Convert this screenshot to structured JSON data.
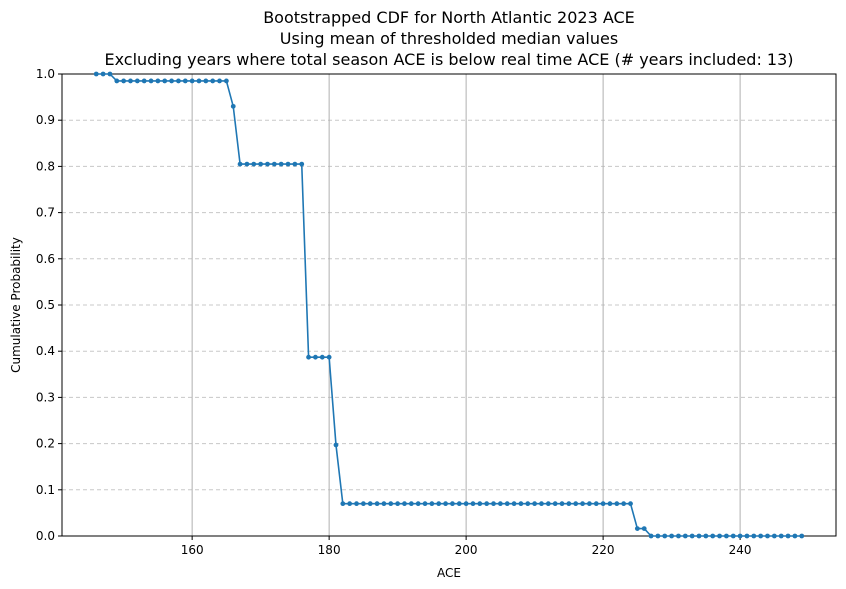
{
  "chart_data": {
    "type": "line",
    "title": [
      "Bootstrapped CDF for North Atlantic 2023 ACE",
      "Using mean of thresholded median values",
      "Excluding years where total season ACE is below real time ACE (# years included: 13)"
    ],
    "x_label": "ACE",
    "y_label": "Cumulative Probability",
    "x": [
      146,
      147,
      148,
      149,
      150,
      151,
      152,
      153,
      154,
      155,
      156,
      157,
      158,
      159,
      160,
      161,
      162,
      163,
      164,
      165,
      166,
      167,
      168,
      169,
      170,
      171,
      172,
      173,
      174,
      175,
      176,
      177,
      178,
      179,
      180,
      181,
      182,
      183,
      184,
      185,
      186,
      187,
      188,
      189,
      190,
      191,
      192,
      193,
      194,
      195,
      196,
      197,
      198,
      199,
      200,
      201,
      202,
      203,
      204,
      205,
      206,
      207,
      208,
      209,
      210,
      211,
      212,
      213,
      214,
      215,
      216,
      217,
      218,
      219,
      220,
      221,
      222,
      223,
      224,
      225,
      226,
      227,
      228,
      229,
      230,
      231,
      232,
      233,
      234,
      235,
      236,
      237,
      238,
      239,
      240,
      241,
      242,
      243,
      244,
      245,
      246,
      247,
      248,
      249
    ],
    "series": [
      {
        "color": "#1f77b4",
        "values": [
          1.0,
          1.0,
          1.0,
          0.985,
          0.985,
          0.985,
          0.985,
          0.985,
          0.985,
          0.985,
          0.985,
          0.985,
          0.985,
          0.985,
          0.985,
          0.985,
          0.985,
          0.985,
          0.985,
          0.985,
          0.93,
          0.805,
          0.805,
          0.805,
          0.805,
          0.805,
          0.805,
          0.805,
          0.805,
          0.805,
          0.805,
          0.387,
          0.387,
          0.387,
          0.387,
          0.197,
          0.07,
          0.07,
          0.07,
          0.07,
          0.07,
          0.07,
          0.07,
          0.07,
          0.07,
          0.07,
          0.07,
          0.07,
          0.07,
          0.07,
          0.07,
          0.07,
          0.07,
          0.07,
          0.07,
          0.07,
          0.07,
          0.07,
          0.07,
          0.07,
          0.07,
          0.07,
          0.07,
          0.07,
          0.07,
          0.07,
          0.07,
          0.07,
          0.07,
          0.07,
          0.07,
          0.07,
          0.07,
          0.07,
          0.07,
          0.07,
          0.07,
          0.07,
          0.07,
          0.016,
          0.016,
          0,
          0,
          0,
          0,
          0,
          0,
          0,
          0,
          0,
          0,
          0,
          0,
          0,
          0,
          0,
          0,
          0,
          0,
          0,
          0,
          0,
          0,
          0
        ]
      }
    ],
    "xlim": [
      141,
      254
    ],
    "ylim": [
      0,
      1
    ],
    "xticks": [
      160,
      180,
      200,
      220,
      240
    ],
    "yticks": [
      {
        "value": 0,
        "label": "0.0"
      },
      {
        "value": 0.1,
        "label": "0.1"
      },
      {
        "value": 0.2,
        "label": "0.2"
      },
      {
        "value": 0.3,
        "label": "0.3"
      },
      {
        "value": 0.4,
        "label": "0.4"
      },
      {
        "value": 0.5,
        "label": "0.5"
      },
      {
        "value": 0.6,
        "label": "0.6"
      },
      {
        "value": 0.7,
        "label": "0.7"
      },
      {
        "value": 0.8,
        "label": "0.8"
      },
      {
        "value": 0.9,
        "label": "0.9"
      },
      {
        "value": 1,
        "label": "1.0"
      }
    ],
    "xgrid": true,
    "ygrid": true
  }
}
